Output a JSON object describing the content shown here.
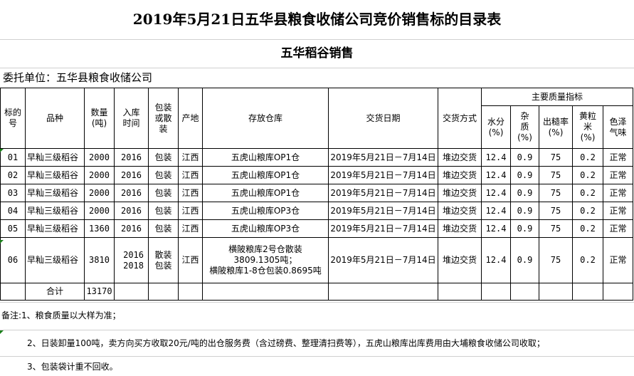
{
  "title": "2019年5月21日五华县粮食收储公司竞价销售标的目录表",
  "subtitle": "五华稻谷销售",
  "entrust": "委托单位：五华县粮食收储公司",
  "headers": {
    "lot_no": "标的号",
    "variety": "品种",
    "quantity": "数量(吨)",
    "storage_year": "入库时间",
    "packing": "包装或散装",
    "origin": "产地",
    "warehouse": "存放仓库",
    "delivery_date": "交货日期",
    "delivery_method": "交货方式",
    "quality_group": "主要质量指标",
    "moisture": "水分(%)",
    "impurity": "杂质(%)",
    "yield": "出糙率(%)",
    "yellow": "黄粒米(%)",
    "color_smell": "色泽气味"
  },
  "rows": [
    {
      "no": "01",
      "variety": "早籼三级稻谷",
      "qty": "2000",
      "year": "2016",
      "pack": "包装",
      "origin": "江西",
      "warehouse": "五虎山粮库OP1仓",
      "date": "2019年5月21日－7月14日",
      "method": "堆边交货",
      "moisture": "12.4",
      "impurity": "0.9",
      "yield": "75",
      "yellow": "0.2",
      "color": "正常"
    },
    {
      "no": "02",
      "variety": "早籼三级稻谷",
      "qty": "2000",
      "year": "2016",
      "pack": "包装",
      "origin": "江西",
      "warehouse": "五虎山粮库OP1仓",
      "date": "2019年5月21日－7月14日",
      "method": "堆边交货",
      "moisture": "12.4",
      "impurity": "0.9",
      "yield": "75",
      "yellow": "0.2",
      "color": "正常"
    },
    {
      "no": "03",
      "variety": "早籼三级稻谷",
      "qty": "2000",
      "year": "2016",
      "pack": "包装",
      "origin": "江西",
      "warehouse": "五虎山粮库OP1仓",
      "date": "2019年5月21日－7月14日",
      "method": "堆边交货",
      "moisture": "12.4",
      "impurity": "0.9",
      "yield": "75",
      "yellow": "0.2",
      "color": "正常"
    },
    {
      "no": "04",
      "variety": "早籼三级稻谷",
      "qty": "2000",
      "year": "2016",
      "pack": "包装",
      "origin": "江西",
      "warehouse": "五虎山粮库OP3仓",
      "date": "2019年5月21日－7月14日",
      "method": "堆边交货",
      "moisture": "12.4",
      "impurity": "0.9",
      "yield": "75",
      "yellow": "0.2",
      "color": "正常"
    },
    {
      "no": "05",
      "variety": "早籼三级稻谷",
      "qty": "1360",
      "year": "2016",
      "pack": "包装",
      "origin": "江西",
      "warehouse": "五虎山粮库OP3仓",
      "date": "2019年5月21日－7月14日",
      "method": "堆边交货",
      "moisture": "12.4",
      "impurity": "0.9",
      "yield": "75",
      "yellow": "0.2",
      "color": "正常"
    }
  ],
  "row6": {
    "no": "06",
    "variety": "早籼三级稻谷",
    "qty": "3810",
    "year1": "2016",
    "year2": "2018",
    "pack1": "散装",
    "pack2": "包装",
    "origin": "江西",
    "wh1": "横陂粮库2号仓散装",
    "wh2": "3809.1305吨；",
    "wh3": "横陂粮库1-8仓包装0.8695吨",
    "date": "2019年5月21日－7月14日",
    "method": "堆边交货",
    "moisture": "12.4",
    "impurity": "0.9",
    "yield": "75",
    "yellow": "0.2",
    "color": "正常"
  },
  "total": {
    "label": "合计",
    "qty": "13170"
  },
  "notes": [
    "备注:1、粮食质量以大样为准；",
    "2、日装卸量100吨，卖方向买方收取20元/吨的出仓服务费（含过磅费、整理清扫费等），五虎山粮库出库费用由大埔粮食收储公司收取；",
    "3、包装袋计重不回收。"
  ]
}
